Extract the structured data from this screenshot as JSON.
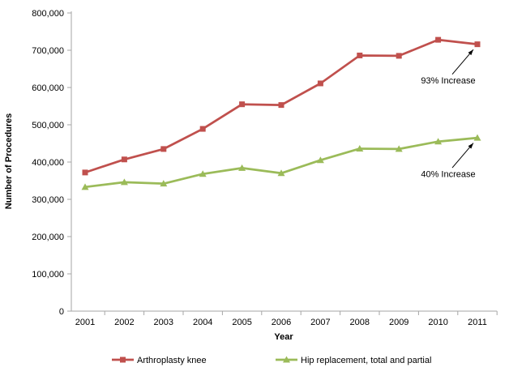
{
  "chart_data": {
    "type": "line",
    "title": "",
    "xlabel": "Year",
    "ylabel": "Number of Procedures",
    "x": [
      2001,
      2002,
      2003,
      2004,
      2005,
      2006,
      2007,
      2008,
      2009,
      2010,
      2011
    ],
    "series": [
      {
        "name": "Arthroplasty knee",
        "color": "#C0504D",
        "marker": "square",
        "values": [
          372000,
          407000,
          435000,
          489000,
          555000,
          553000,
          611000,
          686000,
          685000,
          728000,
          716000
        ]
      },
      {
        "name": "Hip replacement, total and partial",
        "color": "#9BBB59",
        "marker": "triangle",
        "values": [
          333000,
          346000,
          342000,
          368000,
          384000,
          370000,
          405000,
          436000,
          435000,
          455000,
          465000
        ]
      }
    ],
    "ylim": [
      0,
      800000
    ],
    "ytick_step": 100000,
    "grid": false,
    "legend_position": "bottom",
    "axis_color": "#A6A6A6",
    "text_color": "#000000",
    "annotations": [
      {
        "text": "93% Increase",
        "series": 0,
        "x": 2011
      },
      {
        "text": "40% Increase",
        "series": 1,
        "x": 2011
      }
    ]
  }
}
